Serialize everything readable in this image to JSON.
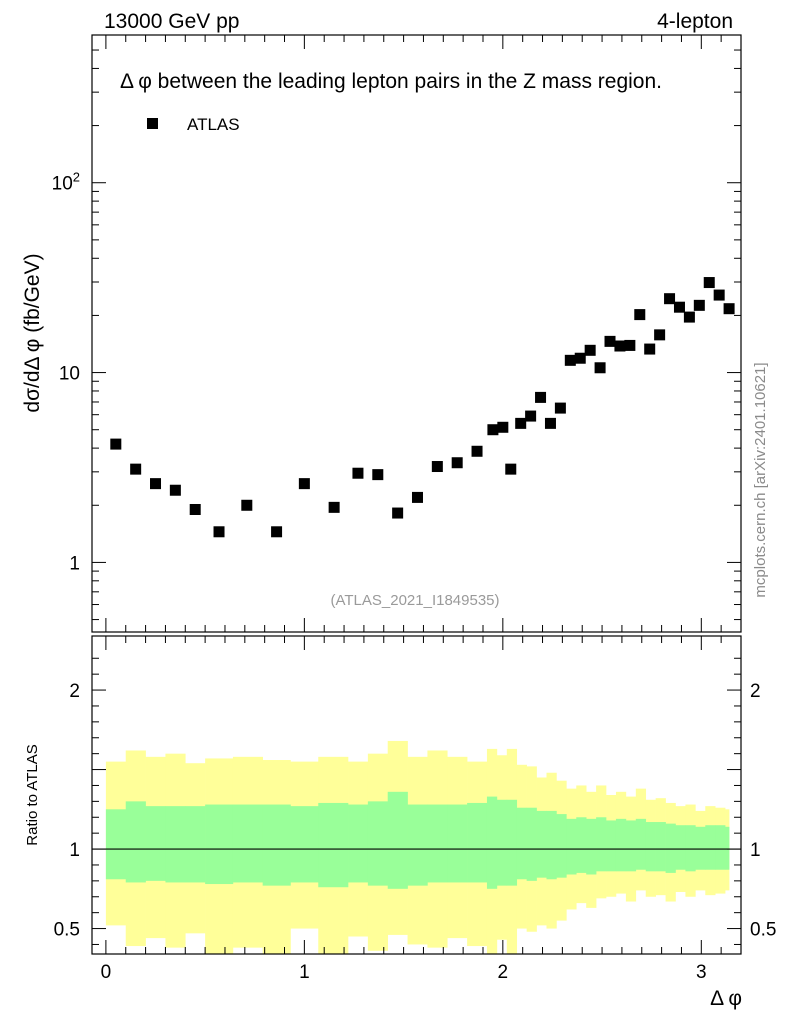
{
  "header": {
    "energy_label": "13000 GeV pp",
    "process_label": "4-lepton",
    "plot_title": "Δ φ between the leading lepton pairs in the Z mass region.",
    "side_label": "mcplots.cern.ch [arXiv:2401.10621]",
    "analysis_id": "(ATLAS_2021_I1849535)"
  },
  "colors": {
    "data_marker": "#000000",
    "band_inner": "#99ff99",
    "band_outer": "#ffff99",
    "frame": "#000000",
    "watermark": "#9a9a9a"
  },
  "chart_data": [
    {
      "type": "scatter",
      "name": "main",
      "xlabel": "Δ φ",
      "ylabel": "dσ/dΔ φ (fb/GeV)",
      "yscale": "log",
      "xlim": [
        -0.07,
        3.2
      ],
      "ylim": [
        0.43,
        600
      ],
      "ytick_labels": [
        {
          "v": 1,
          "t": "1"
        },
        {
          "v": 10,
          "t": "10"
        },
        {
          "v": 100,
          "t": "10",
          "sup": "2"
        }
      ],
      "legend": {
        "label": "ATLAS",
        "position": "top-left"
      },
      "series": [
        {
          "name": "ATLAS",
          "x": [
            0.05,
            0.15,
            0.25,
            0.35,
            0.45,
            0.57,
            0.71,
            0.86,
            1.0,
            1.15,
            1.27,
            1.37,
            1.47,
            1.57,
            1.67,
            1.77,
            1.87,
            1.95,
            2.0,
            2.04,
            2.09,
            2.14,
            2.19,
            2.24,
            2.29,
            2.34,
            2.39,
            2.44,
            2.49,
            2.54,
            2.59,
            2.64,
            2.69,
            2.74,
            2.79,
            2.84,
            2.89,
            2.94,
            2.99,
            3.04,
            3.09,
            3.14
          ],
          "y": [
            4.2,
            3.1,
            2.6,
            2.4,
            1.9,
            1.45,
            2.0,
            1.45,
            2.6,
            1.95,
            2.95,
            2.9,
            1.82,
            2.2,
            3.2,
            3.35,
            3.85,
            5.0,
            5.15,
            3.1,
            5.4,
            5.9,
            7.4,
            5.4,
            6.5,
            11.6,
            11.9,
            13.1,
            10.6,
            14.6,
            13.8,
            13.9,
            20.2,
            13.3,
            15.8,
            24.5,
            22.1,
            19.6,
            22.6,
            29.8,
            25.6,
            21.7
          ]
        }
      ]
    },
    {
      "type": "area",
      "name": "ratio",
      "xlabel": "Δ φ",
      "ylabel": "Ratio to ATLAS",
      "yscale": "linear",
      "xlim": [
        -0.07,
        3.2
      ],
      "ylim": [
        0.34,
        2.34
      ],
      "xticks": [
        0,
        1,
        2,
        3
      ],
      "ytick_labels": [
        {
          "v": 0.5,
          "t": "0.5"
        },
        {
          "v": 1,
          "t": "1"
        },
        {
          "v": 2,
          "t": "2"
        }
      ],
      "reference_line": 1,
      "bin_edges": [
        0,
        0.1,
        0.2,
        0.3,
        0.4,
        0.5,
        0.64,
        0.79,
        0.93,
        1.07,
        1.22,
        1.32,
        1.42,
        1.52,
        1.62,
        1.72,
        1.82,
        1.92,
        1.97,
        2.02,
        2.07,
        2.12,
        2.17,
        2.22,
        2.27,
        2.32,
        2.37,
        2.42,
        2.47,
        2.52,
        2.57,
        2.62,
        2.67,
        2.72,
        2.77,
        2.82,
        2.87,
        2.92,
        2.97,
        3.02,
        3.07,
        3.12,
        3.14
      ],
      "outer_band": {
        "low": [
          0.52,
          0.39,
          0.44,
          0.38,
          0.47,
          0.34,
          0.38,
          0.34,
          0.5,
          0.34,
          0.45,
          0.36,
          0.46,
          0.4,
          0.38,
          0.44,
          0.39,
          0.34,
          0.43,
          0.34,
          0.5,
          0.48,
          0.52,
          0.5,
          0.55,
          0.62,
          0.66,
          0.63,
          0.69,
          0.7,
          0.72,
          0.67,
          0.74,
          0.7,
          0.71,
          0.67,
          0.73,
          0.7,
          0.74,
          0.71,
          0.72,
          0.74
        ],
        "high": [
          1.55,
          1.62,
          1.58,
          1.6,
          1.54,
          1.57,
          1.58,
          1.56,
          1.55,
          1.58,
          1.55,
          1.6,
          1.68,
          1.58,
          1.62,
          1.58,
          1.55,
          1.63,
          1.59,
          1.63,
          1.53,
          1.52,
          1.45,
          1.48,
          1.43,
          1.38,
          1.4,
          1.36,
          1.4,
          1.34,
          1.36,
          1.33,
          1.38,
          1.31,
          1.32,
          1.29,
          1.27,
          1.28,
          1.24,
          1.27,
          1.26,
          1.25
        ]
      },
      "inner_band": {
        "low": [
          0.81,
          0.79,
          0.8,
          0.79,
          0.79,
          0.78,
          0.79,
          0.77,
          0.79,
          0.76,
          0.79,
          0.77,
          0.75,
          0.77,
          0.79,
          0.79,
          0.79,
          0.75,
          0.77,
          0.77,
          0.81,
          0.8,
          0.82,
          0.81,
          0.82,
          0.84,
          0.85,
          0.84,
          0.86,
          0.86,
          0.86,
          0.86,
          0.87,
          0.86,
          0.86,
          0.85,
          0.87,
          0.86,
          0.87,
          0.87,
          0.87,
          0.87
        ],
        "high": [
          1.25,
          1.3,
          1.27,
          1.27,
          1.27,
          1.28,
          1.28,
          1.28,
          1.27,
          1.29,
          1.28,
          1.3,
          1.36,
          1.28,
          1.28,
          1.28,
          1.29,
          1.33,
          1.31,
          1.31,
          1.26,
          1.26,
          1.24,
          1.24,
          1.22,
          1.19,
          1.2,
          1.19,
          1.2,
          1.18,
          1.19,
          1.18,
          1.19,
          1.17,
          1.17,
          1.16,
          1.15,
          1.15,
          1.14,
          1.15,
          1.15,
          1.14
        ]
      }
    }
  ]
}
